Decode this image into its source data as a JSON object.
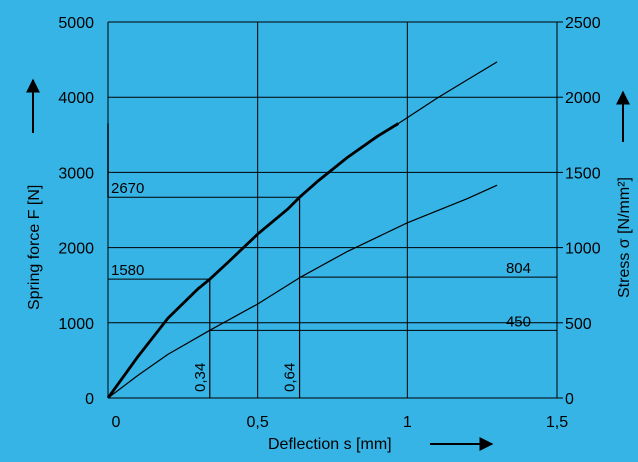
{
  "colors": {
    "background": "#36b4e6",
    "line": "#000000"
  },
  "chart_data": {
    "type": "line",
    "title": "",
    "xlabel": "Deflection  s  [mm]",
    "ylabel_left": "Spring  force  F [N]",
    "ylabel_right": "Stress  σ  [N/mm²]",
    "xlim": [
      0,
      1.5
    ],
    "ylim_left": [
      0,
      5000
    ],
    "ylim_right": [
      0,
      2500
    ],
    "grid": true,
    "x_ticks": [
      "0",
      "0,5",
      "1",
      "1,5"
    ],
    "x_tick_values": [
      0,
      0.5,
      1,
      1.5
    ],
    "y_left_ticks": [
      "0",
      "1000",
      "2000",
      "3000",
      "4000",
      "5000"
    ],
    "y_left_tick_values": [
      0,
      1000,
      2000,
      3000,
      4000,
      5000
    ],
    "y_right_ticks": [
      "0",
      "500",
      "1000",
      "1500",
      "2000",
      "2500"
    ],
    "y_right_tick_values": [
      0,
      500,
      1000,
      1500,
      2000,
      2500
    ],
    "series": [
      {
        "axis": "left",
        "weight": "bold",
        "x": [
          0,
          0.1,
          0.2,
          0.3,
          0.34,
          0.4,
          0.5,
          0.6,
          0.64,
          0.7,
          0.8,
          0.9,
          0.97
        ],
        "y": [
          0,
          550,
          1060,
          1450,
          1580,
          1800,
          2180,
          2510,
          2670,
          2880,
          3200,
          3480,
          3650
        ]
      },
      {
        "axis": "left",
        "weight": "thin",
        "x": [
          0,
          0.1,
          0.2,
          0.34,
          0.5,
          0.64,
          0.8,
          1.0,
          1.2,
          1.3
        ],
        "y": [
          0,
          300,
          580,
          900,
          1250,
          1600,
          1950,
          2330,
          2650,
          2830
        ]
      },
      {
        "axis": "left",
        "weight": "thin",
        "x": [
          0.97,
          1.1,
          1.2,
          1.3
        ],
        "y": [
          3650,
          3990,
          4230,
          4470
        ]
      }
    ],
    "annotations": [
      {
        "label": "2670",
        "axis": "left",
        "value": 2670,
        "x": 0.64,
        "side": "left"
      },
      {
        "label": "1580",
        "axis": "left",
        "value": 1580,
        "x": 0.34,
        "side": "left"
      },
      {
        "label": "804",
        "axis": "right",
        "value": 804,
        "x": 0.64,
        "side": "right"
      },
      {
        "label": "450",
        "axis": "right",
        "value": 450,
        "x": 0.34,
        "side": "right"
      },
      {
        "label": "0,34",
        "x": 0.34,
        "vertical": true
      },
      {
        "label": "0,64",
        "x": 0.64,
        "vertical": true
      }
    ]
  }
}
